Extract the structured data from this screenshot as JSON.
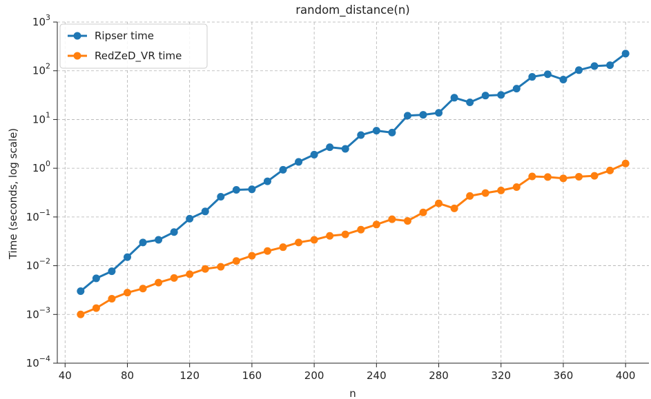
{
  "chart_data": {
    "type": "line",
    "title": "random_distance(n)",
    "xlabel": "n",
    "ylabel": "Time (seconds, log scale)",
    "yscale": "log",
    "xlim": [
      35,
      415
    ],
    "ylim": [
      0.0001,
      1000
    ],
    "xticks": [
      40,
      80,
      120,
      160,
      200,
      240,
      280,
      320,
      360,
      400
    ],
    "yticks": [
      {
        "value": 0.0001,
        "base": "10",
        "exp": "−4"
      },
      {
        "value": 0.001,
        "base": "10",
        "exp": "−3"
      },
      {
        "value": 0.01,
        "base": "10",
        "exp": "−2"
      },
      {
        "value": 0.1,
        "base": "10",
        "exp": "−1"
      },
      {
        "value": 1,
        "base": "10",
        "exp": "0"
      },
      {
        "value": 10,
        "base": "10",
        "exp": "1"
      },
      {
        "value": 100,
        "base": "10",
        "exp": "2"
      },
      {
        "value": 1000,
        "base": "10",
        "exp": "3"
      }
    ],
    "grid": true,
    "legend_position": "top-left",
    "x": [
      50,
      60,
      70,
      80,
      90,
      100,
      110,
      120,
      130,
      140,
      150,
      160,
      170,
      180,
      190,
      200,
      210,
      220,
      230,
      240,
      250,
      260,
      270,
      280,
      290,
      300,
      310,
      320,
      330,
      340,
      350,
      360,
      370,
      380,
      390,
      400
    ],
    "series": [
      {
        "name": "Ripser time",
        "color": "#1f77b4",
        "values": [
          0.003,
          0.0055,
          0.0077,
          0.015,
          0.03,
          0.034,
          0.049,
          0.092,
          0.13,
          0.26,
          0.36,
          0.37,
          0.54,
          0.93,
          1.35,
          1.9,
          2.7,
          2.5,
          4.8,
          5.9,
          5.4,
          12,
          12.5,
          13.7,
          28,
          22.5,
          31,
          32,
          43,
          75,
          85,
          66,
          103,
          125,
          130,
          225
        ]
      },
      {
        "name": "RedZeD_VR time",
        "color": "#ff7f0e",
        "values": [
          0.001,
          0.00135,
          0.0021,
          0.0028,
          0.0034,
          0.0045,
          0.0056,
          0.0067,
          0.0086,
          0.0095,
          0.0125,
          0.016,
          0.02,
          0.024,
          0.03,
          0.034,
          0.041,
          0.044,
          0.055,
          0.07,
          0.09,
          0.083,
          0.124,
          0.19,
          0.15,
          0.27,
          0.31,
          0.35,
          0.41,
          0.68,
          0.66,
          0.62,
          0.67,
          0.7,
          0.9,
          1.25
        ]
      }
    ]
  }
}
